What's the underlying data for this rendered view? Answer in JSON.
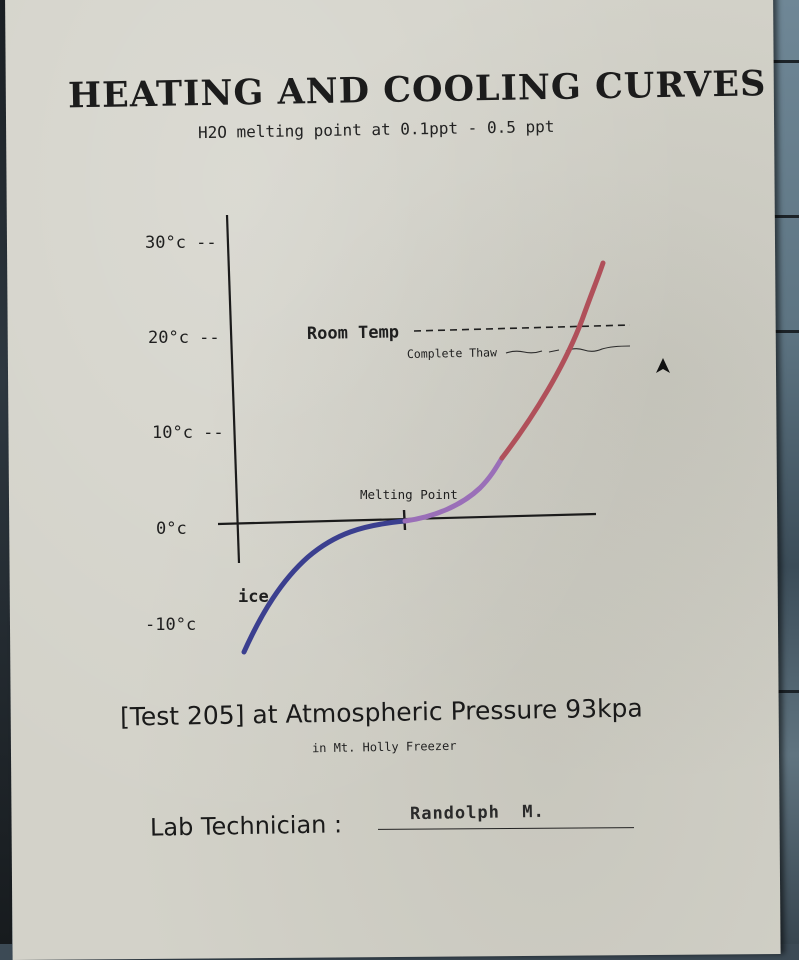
{
  "document": {
    "title": "HEATING AND COOLING CURVES",
    "subtitle": "H2O melting point at 0.1ppt -  0.5 ppt",
    "test_line": "[Test 205] at Atmospheric Pressure 93kpa",
    "location": "in Mt. Holly Freezer",
    "technician_label": "Lab Technician :",
    "technician_name": "Randolph  M."
  },
  "chart_data": {
    "type": "line",
    "y_ticks": [
      "30°c --",
      "20°c --",
      "10°c --",
      "0°c",
      "-10°c"
    ],
    "ylim": [
      -10,
      30
    ],
    "annotations": {
      "room_temp": "Room Temp",
      "complete_thaw": "Complete Thaw",
      "melting_point": "Melting Point",
      "ice": "ice"
    },
    "reference_lines": [
      {
        "label": "Room Temp",
        "value": 20
      },
      {
        "label": "Complete Thaw",
        "value": 18
      }
    ],
    "series": [
      {
        "color": "#3b3f8f",
        "points": [
          [
            -10,
            -12
          ],
          [
            -8,
            -8
          ],
          [
            -6,
            -4
          ],
          [
            -4,
            -2
          ],
          [
            0,
            0
          ]
        ]
      },
      {
        "color": "#9a6fb8",
        "points": [
          [
            0,
            0
          ],
          [
            3,
            1
          ],
          [
            5,
            3
          ],
          [
            6,
            7
          ]
        ]
      },
      {
        "color": "#b0505a",
        "points": [
          [
            6,
            7
          ],
          [
            8,
            12
          ],
          [
            10,
            18
          ],
          [
            11,
            22
          ],
          [
            12,
            28
          ]
        ]
      }
    ],
    "colors": {
      "ice": "#3b3f8f",
      "melt": "#9a6fb8",
      "warm": "#b0505a"
    }
  }
}
